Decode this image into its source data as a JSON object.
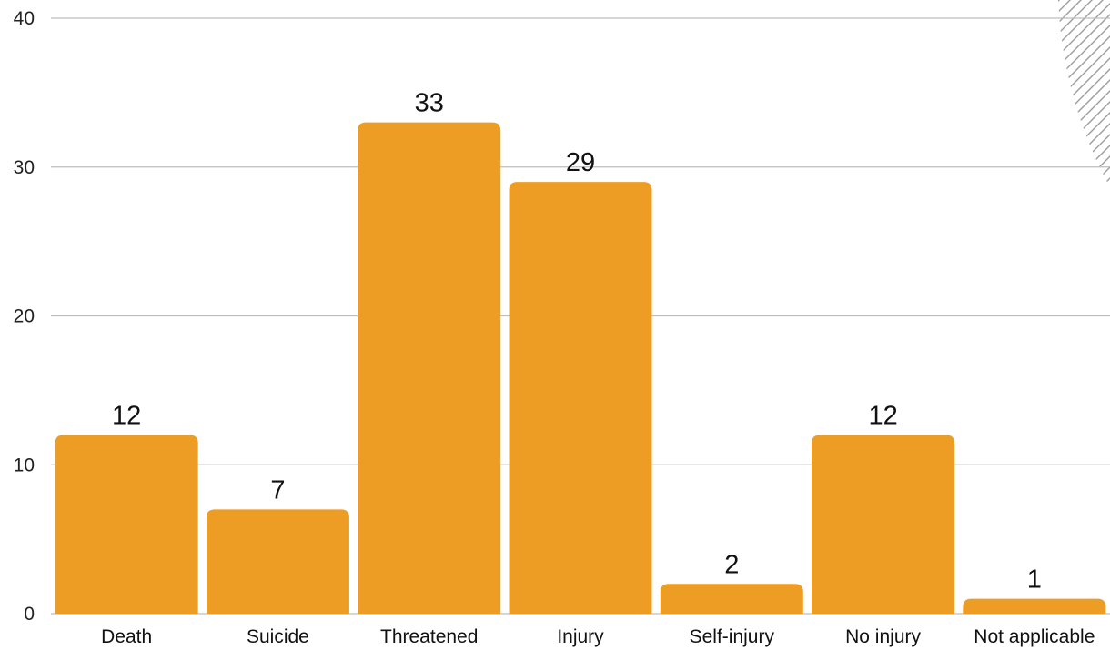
{
  "chart_data": {
    "type": "bar",
    "categories": [
      "Death",
      "Suicide",
      "Threatened",
      "Injury",
      "Self-injury",
      "No injury",
      "Not applicable"
    ],
    "values": [
      12,
      7,
      33,
      29,
      2,
      12,
      1
    ],
    "data_labels": [
      "12",
      "7",
      "33",
      "29",
      "2",
      "12",
      "1"
    ],
    "yticks": [
      0,
      10,
      20,
      30,
      40
    ],
    "ylim": [
      0,
      40
    ],
    "title": "",
    "xlabel": "",
    "ylabel": "",
    "grid": true,
    "legend": "none",
    "colors": {
      "bar": "#EE9D24",
      "grid": "#BDBDBD",
      "hatch": "#9E9E9E"
    }
  }
}
